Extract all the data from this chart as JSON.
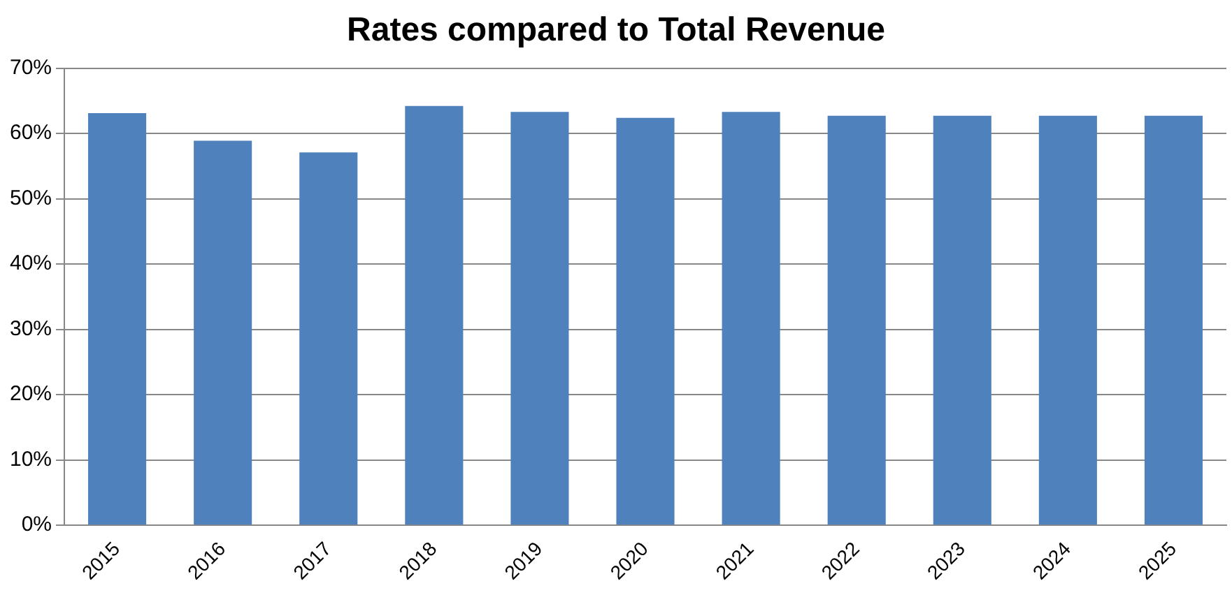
{
  "chart_data": {
    "type": "bar",
    "title": "Rates compared to Total Revenue",
    "categories": [
      "2015",
      "2016",
      "2017",
      "2018",
      "2019",
      "2020",
      "2021",
      "2022",
      "2023",
      "2024",
      "2025"
    ],
    "values": [
      63.1,
      58.9,
      57.1,
      64.2,
      63.3,
      62.4,
      63.3,
      62.7,
      62.7,
      62.7,
      62.7
    ],
    "color": "#4f81bd",
    "ylim": [
      0,
      70
    ],
    "yticks": [
      {
        "value": 0,
        "label": "0%"
      },
      {
        "value": 10,
        "label": "10%"
      },
      {
        "value": 20,
        "label": "20%"
      },
      {
        "value": 30,
        "label": "30%"
      },
      {
        "value": 40,
        "label": "40%"
      },
      {
        "value": 50,
        "label": "50%"
      },
      {
        "value": 60,
        "label": "60%"
      },
      {
        "value": 70,
        "label": "70%"
      }
    ],
    "grid": "y"
  }
}
